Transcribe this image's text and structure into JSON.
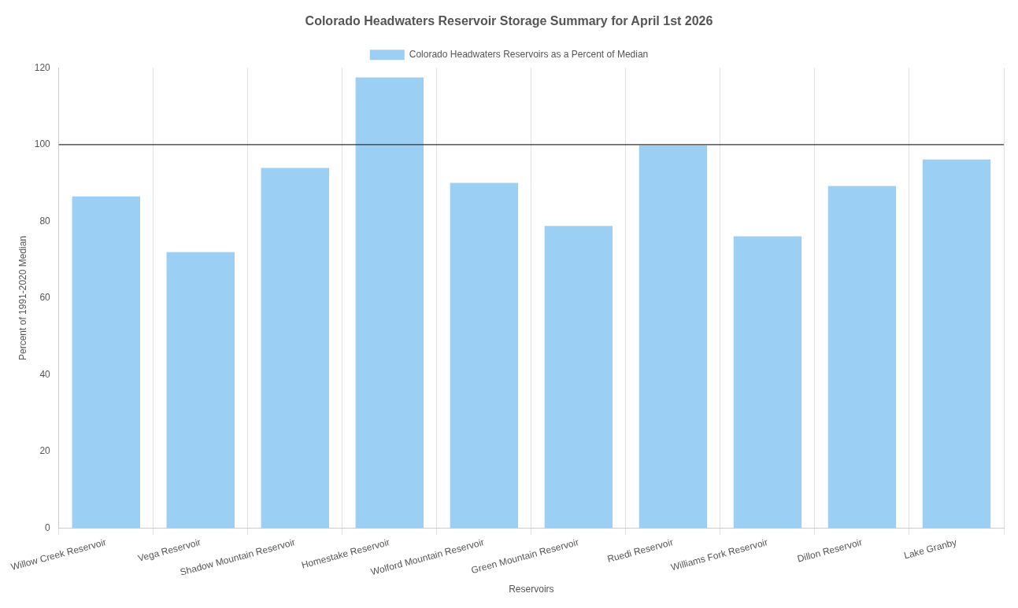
{
  "chart_data": {
    "type": "bar",
    "title": "Colorado Headwaters Reservoir Storage Summary for April 1st 2026",
    "xlabel": "Reservoirs",
    "ylabel": "Percent of 1991-2020 Median",
    "categories": [
      "Willow Creek Reservoir",
      "Vega Reservoir",
      "Shadow Mountain Reservoir",
      "Homestake Reservoir",
      "Wolford Mountain Reservoir",
      "Green Mountain Reservoir",
      "Ruedi Reservoir",
      "Williams Fork Reservoir",
      "Dillon Reservoir",
      "Lake Granby"
    ],
    "series": [
      {
        "name": "Colorado Headwaters Reservoirs as a Percent of Median",
        "color": "#9bcff4",
        "values": [
          86.5,
          72,
          93.9,
          117.5,
          90,
          78.8,
          99.8,
          76.1,
          89.2,
          96.1
        ]
      }
    ],
    "ylim": [
      0,
      120
    ],
    "yticks": [
      0,
      20,
      40,
      60,
      80,
      100,
      120
    ],
    "grid": "x",
    "legend": "top",
    "ref_lines": [
      {
        "axis": "y",
        "value": 100,
        "color": "#333333"
      }
    ]
  }
}
